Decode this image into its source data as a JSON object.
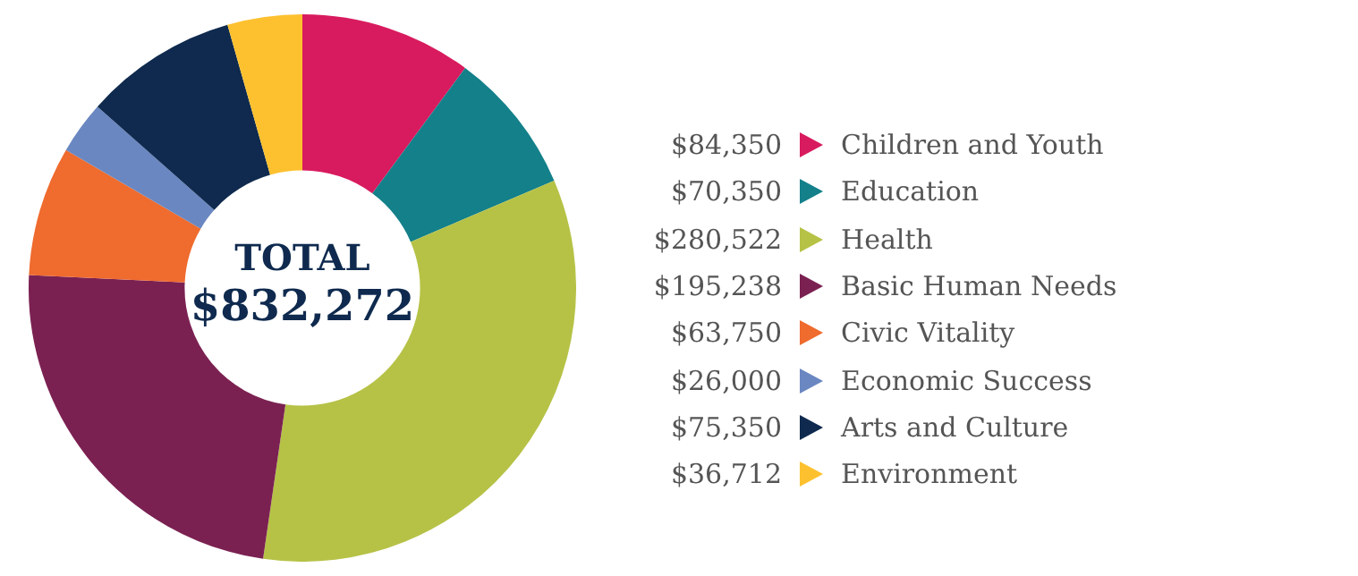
{
  "chart_data": {
    "type": "donut",
    "title": "TOTAL",
    "subtitle": "$832,272",
    "categories": [
      "Children and Youth",
      "Education",
      "Health",
      "Basic Human Needs",
      "Civic Vitality",
      "Economic Success",
      "Arts and Culture",
      "Environment"
    ],
    "values": [
      84350,
      70350,
      280522,
      195238,
      63750,
      26000,
      75350,
      36712
    ],
    "value_labels": [
      "$84,350",
      "$70,350",
      "$280,522",
      "$195,238",
      "$63,750",
      "$26,000",
      "$75,350",
      "$36,712"
    ],
    "colors": [
      "#d81b5e",
      "#13808a",
      "#b6c246",
      "#7b2152",
      "#ef6b2e",
      "#6a87c1",
      "#0f2a4e",
      "#fdc12f"
    ],
    "legend": "right"
  }
}
